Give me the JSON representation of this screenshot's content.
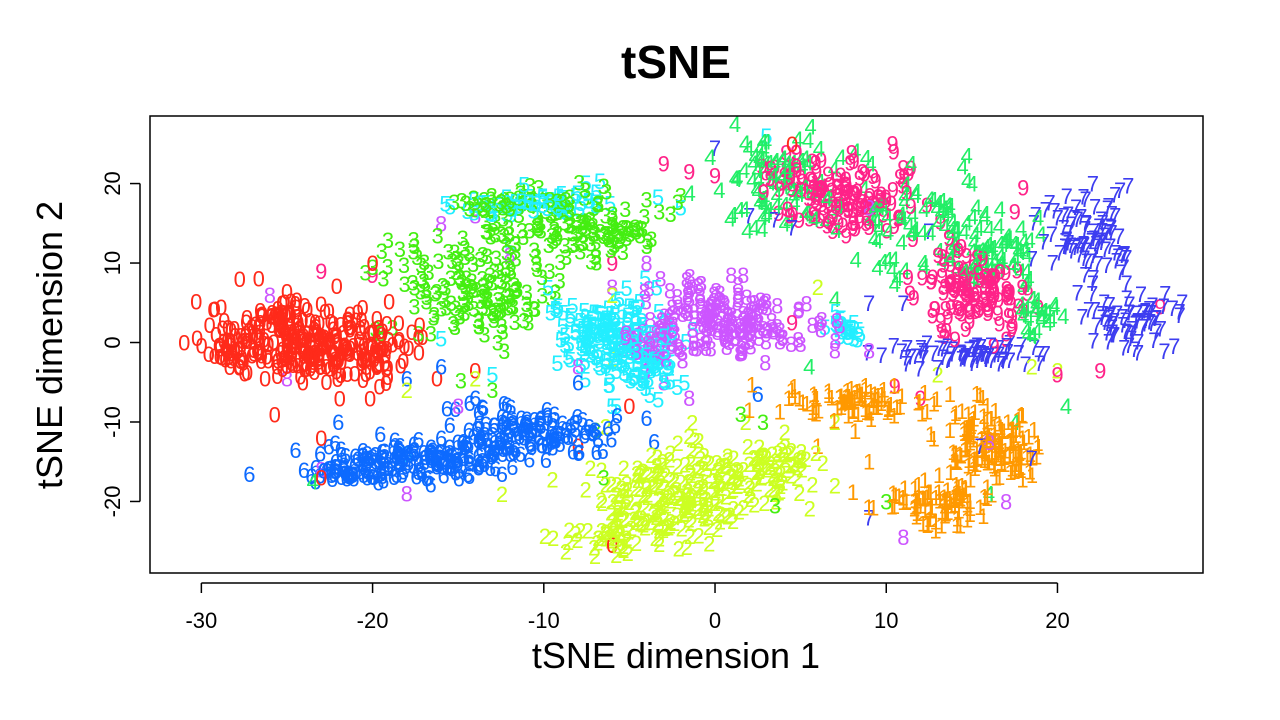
{
  "chart_data": {
    "type": "scatter",
    "title": "tSNE",
    "xlabel": "tSNE dimension 1",
    "ylabel": "tSNE dimension 2",
    "xlim": [
      -33,
      28.5
    ],
    "ylim": [
      -29,
      28.5
    ],
    "xticks": [
      -30,
      -20,
      -10,
      0,
      10,
      20
    ],
    "yticks": [
      -20,
      -10,
      0,
      10,
      20
    ],
    "grid": false,
    "marker": "digit label",
    "series": [
      {
        "name": "0",
        "color": "#FF2A1A",
        "clusters": [
          {
            "center": [
              -24.5,
              0.5
            ],
            "spread": [
              2.8,
              3.3
            ],
            "count": 210
          },
          {
            "center": [
              -21,
              -1
            ],
            "spread": [
              2.5,
              2.8
            ],
            "count": 110
          },
          {
            "center": [
              -28,
              -1
            ],
            "spread": [
              1.3,
              1.8
            ],
            "count": 40
          }
        ],
        "points": [
          [
            -31,
            0
          ],
          [
            -20,
            10
          ],
          [
            -14,
            -3.5
          ],
          [
            -23,
            -17
          ],
          [
            -23,
            -12
          ],
          [
            4.5,
            25
          ],
          [
            -5,
            -8
          ],
          [
            -8,
            -13
          ],
          [
            -6,
            -25.5
          ]
        ]
      },
      {
        "name": "1",
        "color": "#FF9900",
        "clusters": [
          {
            "center": [
              8,
              -7.5
            ],
            "spread": [
              3,
              1.3
            ],
            "count": 90
          },
          {
            "center": [
              15.5,
              -11.5
            ],
            "spread": [
              1.5,
              3
            ],
            "count": 90
          },
          {
            "center": [
              13,
              -20
            ],
            "spread": [
              2,
              2
            ],
            "count": 90
          },
          {
            "center": [
              17.5,
              -14
            ],
            "spread": [
              1.2,
              2.5
            ],
            "count": 50
          }
        ],
        "points": [
          [
            9,
            -15
          ],
          [
            6,
            -13
          ],
          [
            2,
            -8.5
          ]
        ]
      },
      {
        "name": "2",
        "color": "#CCFF22",
        "clusters": [
          {
            "center": [
              -2,
              -19
            ],
            "spread": [
              3.8,
              4
            ],
            "count": 230
          },
          {
            "center": [
              3.5,
              -15
            ],
            "spread": [
              1.8,
              2
            ],
            "count": 60
          },
          {
            "center": [
              -6,
              -24
            ],
            "spread": [
              2.2,
              1.5
            ],
            "count": 50
          }
        ],
        "points": [
          [
            -18,
            -6
          ],
          [
            -14,
            -4.5
          ],
          [
            -6,
            -2
          ],
          [
            6,
            7
          ],
          [
            7,
            -18
          ],
          [
            13,
            -4
          ],
          [
            18.5,
            -3
          ],
          [
            20,
            -3.5
          ],
          [
            7,
            -10
          ],
          [
            -6,
            6
          ]
        ]
      },
      {
        "name": "3",
        "color": "#44EE11",
        "clusters": [
          {
            "center": [
              -14,
              7
            ],
            "spread": [
              3.2,
              5
            ],
            "count": 160
          },
          {
            "center": [
              -8,
              14
            ],
            "spread": [
              3.2,
              3
            ],
            "count": 120
          },
          {
            "center": [
              -12,
              17.5
            ],
            "spread": [
              2.2,
              1.2
            ],
            "count": 40
          }
        ],
        "points": [
          [
            -20,
            9.5
          ],
          [
            -13,
            -6
          ],
          [
            -7,
            -11
          ],
          [
            -4,
            18
          ],
          [
            -6,
            12
          ],
          [
            1.5,
            -9
          ],
          [
            2.8,
            -10
          ],
          [
            3.5,
            -20.5
          ],
          [
            10,
            -20
          ],
          [
            -6.5,
            -17
          ],
          [
            -2,
            18.5
          ]
        ]
      },
      {
        "name": "4",
        "color": "#22EE66",
        "clusters": [
          {
            "center": [
              3.5,
              20
            ],
            "spread": [
              2.5,
              4
            ],
            "count": 90
          },
          {
            "center": [
              12.5,
              15
            ],
            "spread": [
              3,
              4
            ],
            "count": 90
          },
          {
            "center": [
              16.5,
              11
            ],
            "spread": [
              2,
              3
            ],
            "count": 60
          },
          {
            "center": [
              19,
              3.5
            ],
            "spread": [
              1,
              3
            ],
            "count": 25
          }
        ],
        "points": [
          [
            20.5,
            -8
          ],
          [
            17.5,
            -10
          ],
          [
            16,
            -19
          ],
          [
            7,
            5.5
          ],
          [
            5.5,
            -3
          ],
          [
            -23.5,
            -17.5
          ],
          [
            4.5,
            22
          ]
        ]
      },
      {
        "name": "5",
        "color": "#22EEFF",
        "clusters": [
          {
            "center": [
              -6,
              1
            ],
            "spread": [
              2.5,
              3.2
            ],
            "count": 160
          },
          {
            "center": [
              -10.5,
              17.5
            ],
            "spread": [
              2.5,
              1.3
            ],
            "count": 60
          },
          {
            "center": [
              -4,
              -4
            ],
            "spread": [
              1.5,
              2
            ],
            "count": 50
          },
          {
            "center": [
              7.5,
              2
            ],
            "spread": [
              0.8,
              1
            ],
            "count": 20
          }
        ],
        "points": [
          [
            -16,
            0.5
          ],
          [
            -18,
            -14
          ],
          [
            3,
            26
          ],
          [
            -13,
            -4
          ],
          [
            -6,
            -8
          ],
          [
            -12,
            12
          ],
          [
            -2,
            17
          ]
        ]
      },
      {
        "name": "6",
        "color": "#0D6AFF",
        "clusters": [
          {
            "center": [
              -17,
              -14.5
            ],
            "spread": [
              4,
              1.6
            ],
            "count": 150
          },
          {
            "center": [
              -11,
              -11.5
            ],
            "spread": [
              3,
              2.2
            ],
            "count": 130
          },
          {
            "center": [
              -21.5,
              -16.5
            ],
            "spread": [
              1.5,
              0.8
            ],
            "count": 40
          }
        ],
        "points": [
          [
            -22,
            -10
          ],
          [
            -24.5,
            -13.5
          ],
          [
            -16,
            -3
          ],
          [
            -18,
            -4.5
          ],
          [
            -4,
            -9.5
          ],
          [
            -8,
            -5
          ],
          [
            2.5,
            -6.5
          ],
          [
            -14,
            -7
          ]
        ]
      },
      {
        "name": "7",
        "color": "#3D3DF0",
        "clusters": [
          {
            "center": [
              22,
              13
            ],
            "spread": [
              1.8,
              4
            ],
            "count": 90
          },
          {
            "center": [
              24.5,
              3
            ],
            "spread": [
              2,
              2.5
            ],
            "count": 70
          },
          {
            "center": [
              15,
              -1.5
            ],
            "spread": [
              3.5,
              1
            ],
            "count": 70
          }
        ],
        "points": [
          [
            0,
            24.5
          ],
          [
            2,
            16
          ],
          [
            3.5,
            15.5
          ],
          [
            4.5,
            14.5
          ],
          [
            9,
            5
          ],
          [
            11,
            5
          ],
          [
            9,
            -22
          ],
          [
            18.5,
            -14.5
          ],
          [
            15.5,
            -13
          ],
          [
            12.5,
            14
          ]
        ]
      },
      {
        "name": "8",
        "color": "#CC55FF",
        "clusters": [
          {
            "center": [
              1,
              3
            ],
            "spread": [
              3,
              3.2
            ],
            "count": 160
          },
          {
            "center": [
              -3,
              0
            ],
            "spread": [
              1.5,
              2
            ],
            "count": 40
          }
        ],
        "points": [
          [
            -25,
            -4.5
          ],
          [
            -18,
            -19
          ],
          [
            -15,
            -8
          ],
          [
            -14,
            16
          ],
          [
            -16,
            15
          ],
          [
            -12,
            11
          ],
          [
            -4,
            10
          ],
          [
            -6,
            7
          ],
          [
            -8,
            -3
          ],
          [
            -3,
            -5
          ],
          [
            -1.5,
            -7
          ],
          [
            7,
            -1
          ],
          [
            9,
            -1
          ],
          [
            11,
            -24.5
          ],
          [
            17,
            -20
          ],
          [
            9,
            17
          ],
          [
            16,
            -12.5
          ],
          [
            -26,
            6
          ],
          [
            -23,
            -16
          ]
        ]
      },
      {
        "name": "9",
        "color": "#FF2288",
        "clusters": [
          {
            "center": [
              8,
              18.5
            ],
            "spread": [
              2.4,
              3.2
            ],
            "count": 120
          },
          {
            "center": [
              15,
              6
            ],
            "spread": [
              2.3,
              3.2
            ],
            "count": 120
          },
          {
            "center": [
              4.5,
              21
            ],
            "spread": [
              1.5,
              1.5
            ],
            "count": 25
          }
        ],
        "points": [
          [
            -23,
            9
          ],
          [
            -20,
            8.5
          ],
          [
            -6,
            10
          ],
          [
            -3,
            22.5
          ],
          [
            -1.5,
            21.5
          ],
          [
            0,
            21
          ],
          [
            18,
            19.5
          ],
          [
            17.5,
            16.5
          ],
          [
            18,
            4
          ],
          [
            20,
            -4
          ],
          [
            22.5,
            -3.5
          ],
          [
            11,
            22
          ],
          [
            26,
            4.5
          ],
          [
            10.5,
            -5.5
          ],
          [
            12,
            -7
          ],
          [
            4.5,
            2.5
          ]
        ]
      }
    ]
  }
}
